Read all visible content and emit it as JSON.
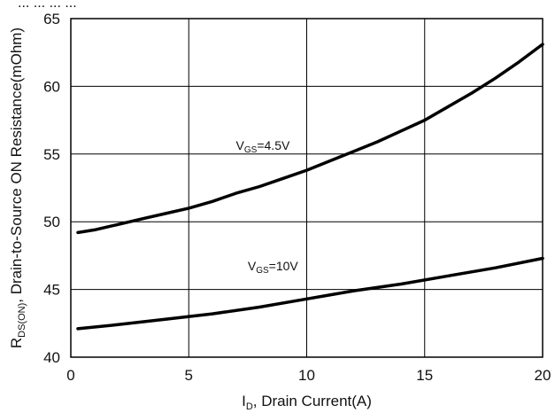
{
  "chart_data": {
    "type": "line",
    "title": "",
    "title_fragment": "... ... ... ...",
    "xlabel": {
      "main": "I",
      "sub": "D",
      "rest": ", Drain Current(A)"
    },
    "ylabel": {
      "main": "R",
      "sub": "DS(ON)",
      "rest": ", Drain-to-Source ON Resistance(mOhm)"
    },
    "xlim": [
      0,
      20
    ],
    "ylim": [
      40,
      65
    ],
    "xticks": [
      0,
      5,
      10,
      15,
      20
    ],
    "yticks": [
      40,
      45,
      50,
      55,
      60,
      65
    ],
    "grid": true,
    "series": [
      {
        "name_main": "V",
        "name_sub": "GS",
        "name_rest": "=4.5V",
        "label_at": [
          7.0,
          55.3
        ],
        "x": [
          0.3,
          1,
          2,
          3,
          4,
          5,
          6,
          7,
          8,
          9,
          10,
          11,
          12,
          13,
          14,
          15,
          16,
          17,
          18,
          19,
          20
        ],
        "y": [
          49.2,
          49.4,
          49.8,
          50.2,
          50.6,
          51.0,
          51.5,
          52.1,
          52.6,
          53.2,
          53.8,
          54.5,
          55.2,
          55.9,
          56.7,
          57.5,
          58.5,
          59.5,
          60.6,
          61.8,
          63.1
        ]
      },
      {
        "name_main": "V",
        "name_sub": "GS",
        "name_rest": "=10V",
        "label_at": [
          7.5,
          46.4
        ],
        "x": [
          0.3,
          2,
          4,
          6,
          8,
          10,
          12,
          14,
          16,
          18,
          20
        ],
        "y": [
          42.1,
          42.4,
          42.8,
          43.2,
          43.7,
          44.3,
          44.9,
          45.4,
          46.0,
          46.6,
          47.3
        ]
      }
    ]
  }
}
